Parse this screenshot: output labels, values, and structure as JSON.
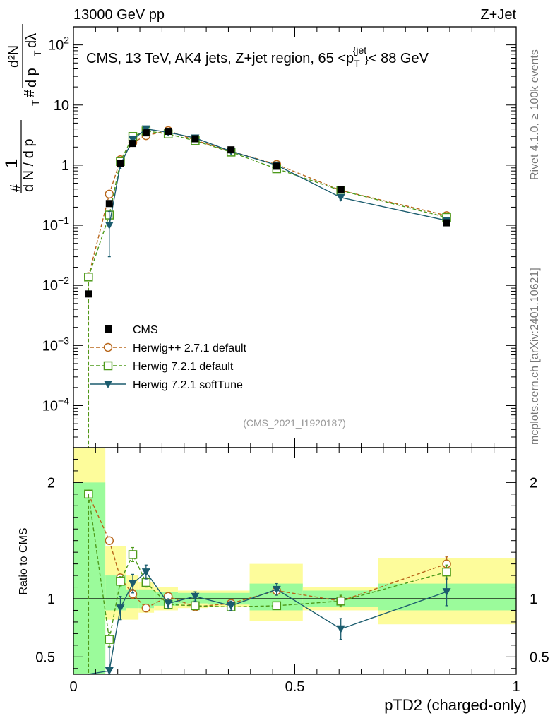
{
  "header": {
    "left": "13000 GeV pp",
    "right": "Z+Jet"
  },
  "side": {
    "rivet": "Rivet 4.1.0, ≥ 100k events",
    "mcplots": "mcplots.cern.ch [arXiv:2401.10621]"
  },
  "colors": {
    "cms": "#000000",
    "herwigpp": "#b8661a",
    "herwig721": "#4d9a1a",
    "softtune": "#1b5c6e",
    "band_green": "#9bfb9b",
    "band_yellow": "#fdfc9b"
  },
  "chart_data": {
    "type": "scatter",
    "title": "CMS, 13 TeV, AK4 jets, Z+jet region, 65 <p_T^{jet}< 88 GeV",
    "title_parts": {
      "prefix": "CMS, 13 TeV, AK4 jets, Z+jet region, 65 <p",
      "sub": "T",
      "sup": "{jet",
      "sup_close": "}",
      "suffix": "< 88 GeV"
    },
    "analysis_id": "(CMS_2021_I1920187)",
    "xlabel": "pTD2 (charged-only)",
    "ylabel_top": "1/N dN/dλ",
    "ylabel_top_parts": {
      "hash": "#",
      "one": "1",
      "dN": "d N / d p",
      "T": "T",
      "hash2": "#",
      "d2N": "d²N",
      "dpT": "d p",
      "T2": "T",
      "dlam": "dλ"
    },
    "ylabel_ratio": "Ratio to CMS",
    "xlim": [
      0,
      1
    ],
    "ylim_top": [
      2e-05,
      200
    ],
    "ylim_ratio": [
      0.35,
      2.3
    ],
    "x_ticks": [
      {
        "v": 0,
        "label": "0"
      },
      {
        "v": 0.5,
        "label": "0.5"
      },
      {
        "v": 1,
        "label": "1"
      }
    ],
    "y_ticks_top": [
      {
        "exp": -4,
        "label": "10",
        "sup": "−4"
      },
      {
        "exp": -3,
        "label": "10",
        "sup": "−3"
      },
      {
        "exp": -2,
        "label": "10",
        "sup": "−2"
      },
      {
        "exp": -1,
        "label": "10",
        "sup": "−1"
      },
      {
        "exp": 0,
        "label": "1",
        "sup": ""
      },
      {
        "exp": 1,
        "label": "10",
        "sup": ""
      },
      {
        "exp": 2,
        "label": "10",
        "sup": "2"
      }
    ],
    "y_ticks_ratio": [
      {
        "v": 0.5,
        "label": "0.5"
      },
      {
        "v": 1,
        "label": "1"
      },
      {
        "v": 2,
        "label": "2"
      }
    ],
    "bins": [
      {
        "lo": 0.0,
        "hi": 0.072,
        "x": 0.034
      },
      {
        "lo": 0.072,
        "hi": 0.095,
        "x": 0.081
      },
      {
        "lo": 0.095,
        "hi": 0.119,
        "x": 0.106
      },
      {
        "lo": 0.119,
        "hi": 0.147,
        "x": 0.134
      },
      {
        "lo": 0.147,
        "hi": 0.182,
        "x": 0.164
      },
      {
        "lo": 0.182,
        "hi": 0.236,
        "x": 0.214
      },
      {
        "lo": 0.236,
        "hi": 0.304,
        "x": 0.275
      },
      {
        "lo": 0.304,
        "hi": 0.398,
        "x": 0.356
      },
      {
        "lo": 0.398,
        "hi": 0.518,
        "x": 0.459
      },
      {
        "lo": 0.518,
        "hi": 0.688,
        "x": 0.604
      },
      {
        "lo": 0.688,
        "hi": 1.0,
        "x": 0.843
      }
    ],
    "cms": [
      0.0072,
      0.23,
      1.07,
      2.3,
      3.45,
      3.65,
      2.75,
      1.8,
      0.96,
      0.39,
      0.11
    ],
    "band_green": [
      [
        0.02,
        2.0
      ],
      [
        0.9,
        1.2
      ],
      [
        0.9,
        1.2
      ],
      [
        0.92,
        1.08
      ],
      [
        0.92,
        1.08
      ],
      [
        0.94,
        1.06
      ],
      [
        0.96,
        1.05
      ],
      [
        0.95,
        1.05
      ],
      [
        0.9,
        1.13
      ],
      [
        0.93,
        1.07
      ],
      [
        0.9,
        1.13
      ]
    ],
    "band_yellow": [
      [
        0.02,
        2.3
      ],
      [
        0.82,
        1.45
      ],
      [
        0.82,
        1.45
      ],
      [
        0.82,
        1.2
      ],
      [
        0.88,
        1.14
      ],
      [
        0.9,
        1.1
      ],
      [
        0.92,
        1.07
      ],
      [
        0.93,
        1.07
      ],
      [
        0.81,
        1.3
      ],
      [
        0.9,
        1.1
      ],
      [
        0.78,
        1.35
      ]
    ],
    "series": [
      {
        "name": "Herwig++ 2.7.1 default",
        "key": "herwigpp",
        "marker": "circle-open",
        "dashed": true,
        "values": [
          0.014,
          0.33,
          1.23,
          2.38,
          3.1,
          3.75,
          2.6,
          1.7,
          1.03,
          0.38,
          0.145
        ],
        "ratio": [
          1.9,
          1.5,
          1.18,
          1.04,
          0.92,
          1.02,
          0.93,
          0.96,
          1.07,
          0.98,
          1.3
        ],
        "ratio_err": [
          0.02,
          0.03,
          0.03,
          0.04,
          0.03,
          0.02,
          0.03,
          0.03,
          0.03,
          0.04,
          0.06
        ]
      },
      {
        "name": "Herwig 7.2.1 default",
        "key": "herwig721",
        "marker": "square-open",
        "dashed": true,
        "values": [
          0.0138,
          0.148,
          1.15,
          3.0,
          3.7,
          3.3,
          2.55,
          1.65,
          0.87,
          0.38,
          0.135
        ],
        "ratio": [
          1.9,
          0.65,
          1.15,
          1.38,
          1.14,
          0.95,
          0.94,
          0.93,
          0.94,
          0.98,
          1.23
        ],
        "ratio_err": [
          0.02,
          0.06,
          0.04,
          0.06,
          0.04,
          0.03,
          0.03,
          0.03,
          0.03,
          0.05,
          0.06
        ]
      },
      {
        "name": "Herwig 7.2.1 softTune",
        "key": "softtune",
        "marker": "triangle-down",
        "dashed": false,
        "values": [
          0,
          0.1,
          1.02,
          2.65,
          4.0,
          3.52,
          2.83,
          1.7,
          1.0,
          0.29,
          0.12
        ],
        "ratio": [
          0.2,
          0.38,
          0.92,
          1.13,
          1.23,
          0.96,
          1.02,
          0.94,
          1.08,
          0.74,
          1.06
        ],
        "ratio_err": [
          0.2,
          0.2,
          0.1,
          0.08,
          0.06,
          0.04,
          0.04,
          0.04,
          0.05,
          0.09,
          0.12
        ],
        "top_err": [
          0,
          0.07,
          0.15,
          0.2,
          0.2,
          0.15,
          0.1,
          0.06,
          0.04,
          0.025,
          0.01
        ]
      }
    ],
    "legend": [
      {
        "label": "CMS",
        "key": "cms"
      },
      {
        "label": "Herwig++ 2.7.1 default",
        "key": "herwigpp"
      },
      {
        "label": "Herwig 7.2.1 default",
        "key": "herwig721"
      },
      {
        "label": "Herwig 7.2.1 softTune",
        "key": "softtune"
      }
    ]
  }
}
